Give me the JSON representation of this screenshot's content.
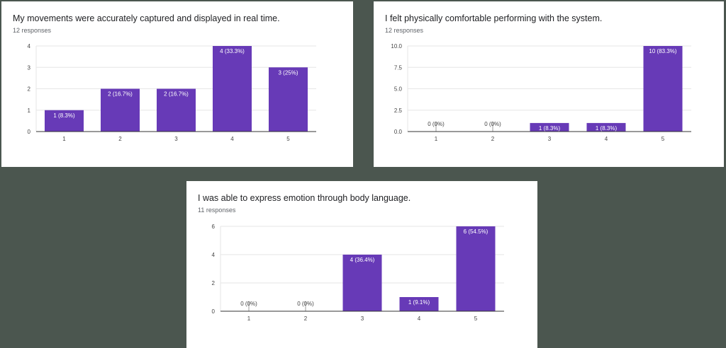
{
  "colors": {
    "bar": "#673ab7",
    "grid": "#e6e6e6",
    "axis": "#333333",
    "background": "#4b564f"
  },
  "chart_data": [
    {
      "type": "bar",
      "title": "My movements were accurately captured and displayed in real time.",
      "subtitle": "12 responses",
      "categories": [
        "1",
        "2",
        "3",
        "4",
        "5"
      ],
      "values": [
        1,
        2,
        2,
        4,
        3
      ],
      "value_labels": [
        "1 (8.3%)",
        "2 (16.7%)",
        "2 (16.7%)",
        "4 (33.3%)",
        "3 (25%)"
      ],
      "ylim": [
        0,
        4
      ],
      "yticks": [
        "0",
        "1",
        "2",
        "3",
        "4"
      ],
      "grid": true
    },
    {
      "type": "bar",
      "title": "I felt physically comfortable performing with the system.",
      "subtitle": "12 responses",
      "categories": [
        "1",
        "2",
        "3",
        "4",
        "5"
      ],
      "values": [
        0,
        0,
        1,
        1,
        10
      ],
      "value_labels": [
        "0 (0%)",
        "0 (0%)",
        "1 (8.3%)",
        "1 (8.3%)",
        "10 (83.3%)"
      ],
      "ylim": [
        0,
        10
      ],
      "yticks": [
        "0.0",
        "2.5",
        "5.0",
        "7.5",
        "10.0"
      ],
      "grid": true
    },
    {
      "type": "bar",
      "title": "I was able to express emotion through body language.",
      "subtitle": "11 responses",
      "categories": [
        "1",
        "2",
        "3",
        "4",
        "5"
      ],
      "values": [
        0,
        0,
        4,
        1,
        6
      ],
      "value_labels": [
        "0 (0%)",
        "0 (0%)",
        "4 (36.4%)",
        "1 (9.1%)",
        "6 (54.5%)"
      ],
      "ylim": [
        0,
        6
      ],
      "yticks": [
        "0",
        "2",
        "4",
        "6"
      ],
      "grid": true
    }
  ]
}
